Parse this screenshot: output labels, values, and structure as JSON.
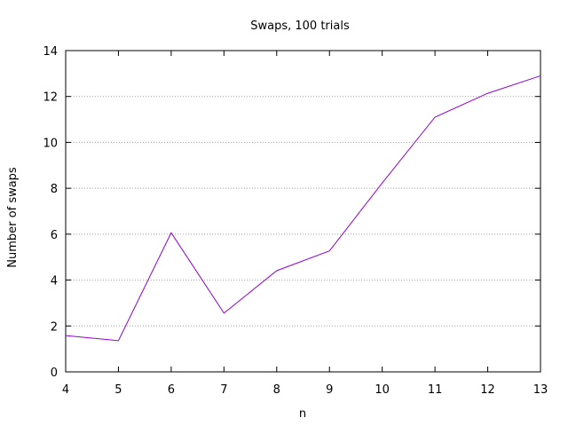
{
  "chart_data": {
    "type": "line",
    "title": "Swaps, 100 trials",
    "xlabel": "n",
    "ylabel": "Number of swaps",
    "x": [
      4,
      5,
      6,
      7,
      8,
      9,
      10,
      11,
      12,
      13
    ],
    "xlim": [
      4,
      13
    ],
    "ylim": [
      0,
      14
    ],
    "xticks": [
      "4",
      "5",
      "6",
      "7",
      "8",
      "9",
      "10",
      "11",
      "12",
      "13"
    ],
    "yticks": [
      "0",
      "2",
      "4",
      "6",
      "8",
      "10",
      "12",
      "14"
    ],
    "grid": "horizontal-dotted",
    "legend": "none",
    "series": [
      {
        "color": "#9400d3",
        "values": [
          1.58,
          1.36,
          6.06,
          2.56,
          4.41,
          5.27,
          8.23,
          11.1,
          12.14,
          12.9
        ]
      }
    ]
  }
}
